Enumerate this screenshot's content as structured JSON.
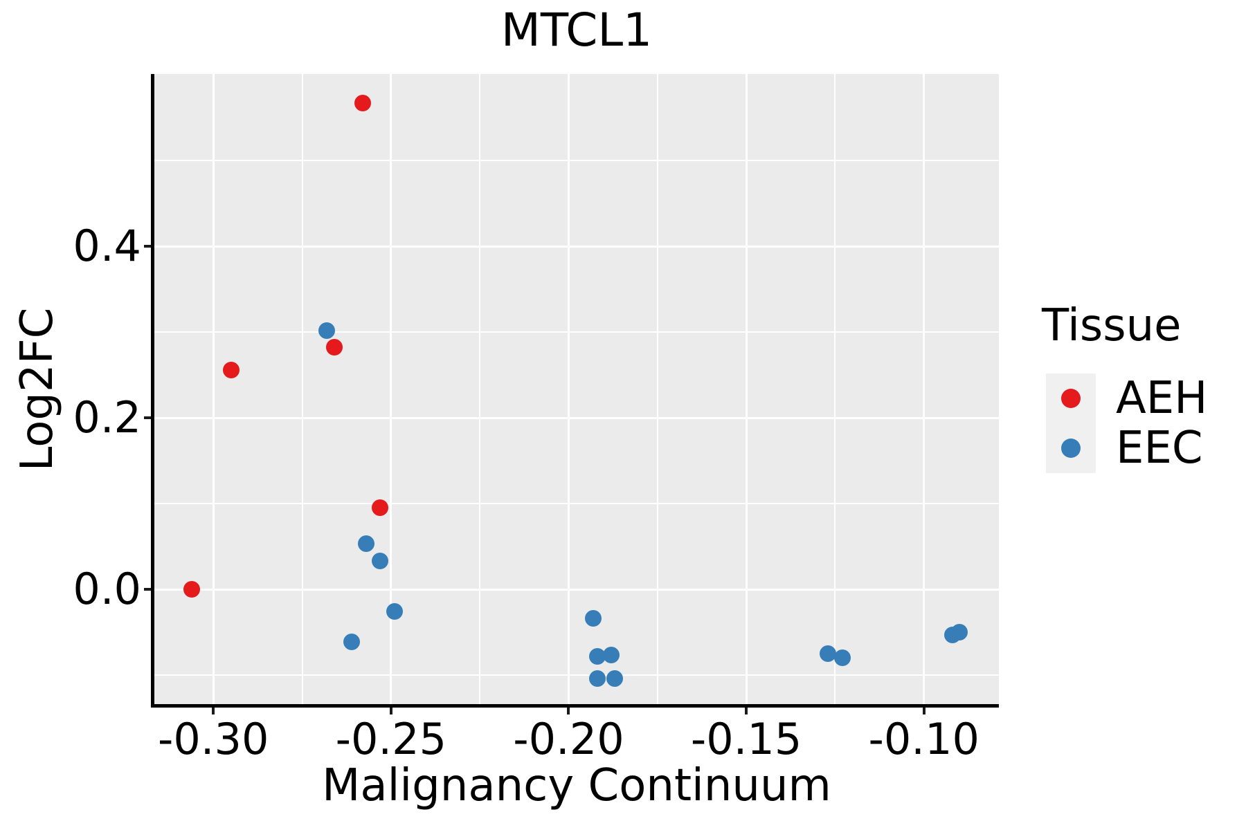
{
  "page": {
    "background_color": "#FFFFFF"
  },
  "chart_data": {
    "type": "scatter",
    "title": "MTCL1",
    "xlabel": "Malignancy Continuum",
    "ylabel": "Log2FC",
    "xlim": [
      -0.3166,
      -0.0789
    ],
    "ylim": [
      -0.1355,
      0.601
    ],
    "panel_bg": "#EBEBEB",
    "grid": "white major and minor gridlines on gray panel",
    "x_ticks": {
      "values": [
        -0.3,
        -0.25,
        -0.2,
        -0.15,
        -0.1
      ],
      "labels": [
        "-0.30",
        "-0.25",
        "-0.20",
        "-0.15",
        "-0.10"
      ]
    },
    "y_ticks": {
      "values": [
        0.0,
        0.2,
        0.4
      ],
      "labels": [
        "0.0",
        "0.2",
        "0.4"
      ]
    },
    "x_minor": [
      -0.275,
      -0.225,
      -0.175,
      -0.125
    ],
    "y_minor": [
      -0.1,
      0.1,
      0.3,
      0.5
    ],
    "legend": {
      "title": "Tissue",
      "position": "right",
      "key_bg": "#F0F0F0",
      "entries": [
        {
          "label": "AEH",
          "color": "#E41A1C"
        },
        {
          "label": "EEC",
          "color": "#377EB8"
        }
      ]
    },
    "series": [
      {
        "name": "AEH",
        "color": "#E41A1C",
        "x": [
          -0.306,
          -0.295,
          -0.266,
          -0.258,
          -0.253
        ],
        "y": [
          0.0,
          0.256,
          0.282,
          0.567,
          0.095
        ]
      },
      {
        "name": "EEC",
        "color": "#377EB8",
        "x": [
          -0.268,
          -0.261,
          -0.257,
          -0.253,
          -0.249,
          -0.193,
          -0.192,
          -0.192,
          -0.188,
          -0.187,
          -0.127,
          -0.123,
          -0.092,
          -0.09
        ],
        "y": [
          0.302,
          -0.061,
          0.053,
          0.033,
          -0.026,
          -0.034,
          -0.078,
          -0.104,
          -0.077,
          -0.104,
          -0.075,
          -0.08,
          -0.053,
          -0.05
        ]
      }
    ]
  }
}
